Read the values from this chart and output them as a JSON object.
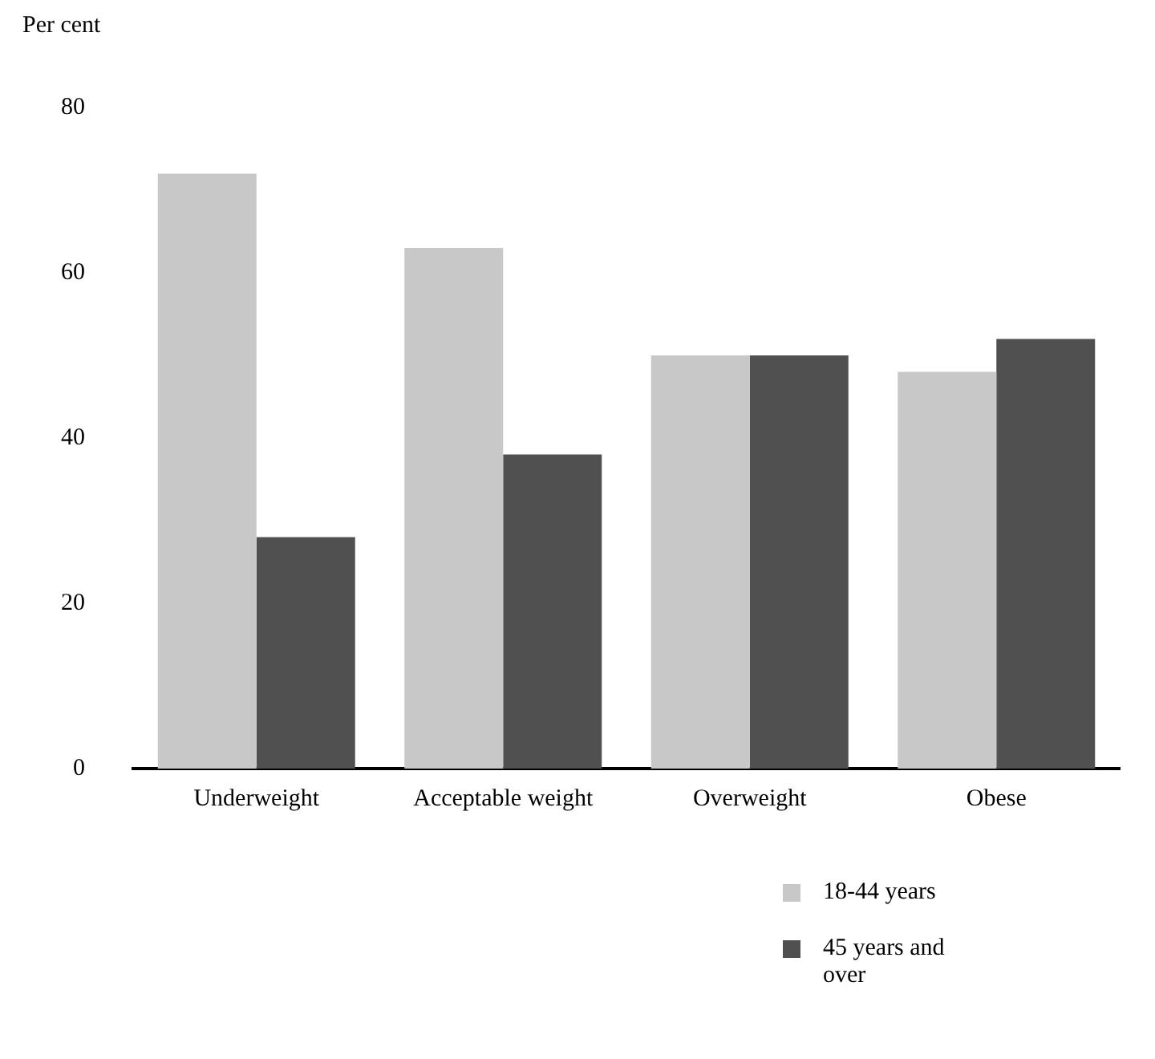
{
  "chart_data": {
    "type": "bar",
    "ylabel": "Per cent",
    "categories": [
      "Underweight",
      "Acceptable weight",
      "Overweight",
      "Obese"
    ],
    "series": [
      {
        "name": "18-44 years",
        "color": "#c8c8c8",
        "values": [
          72,
          63,
          50,
          48
        ]
      },
      {
        "name": "45 years and over",
        "color": "#505050",
        "values": [
          28,
          38,
          50,
          52
        ]
      }
    ],
    "ylim": [
      0,
      80
    ],
    "yticks": [
      0,
      20,
      40,
      60,
      80
    ],
    "legend": "bottom right"
  }
}
